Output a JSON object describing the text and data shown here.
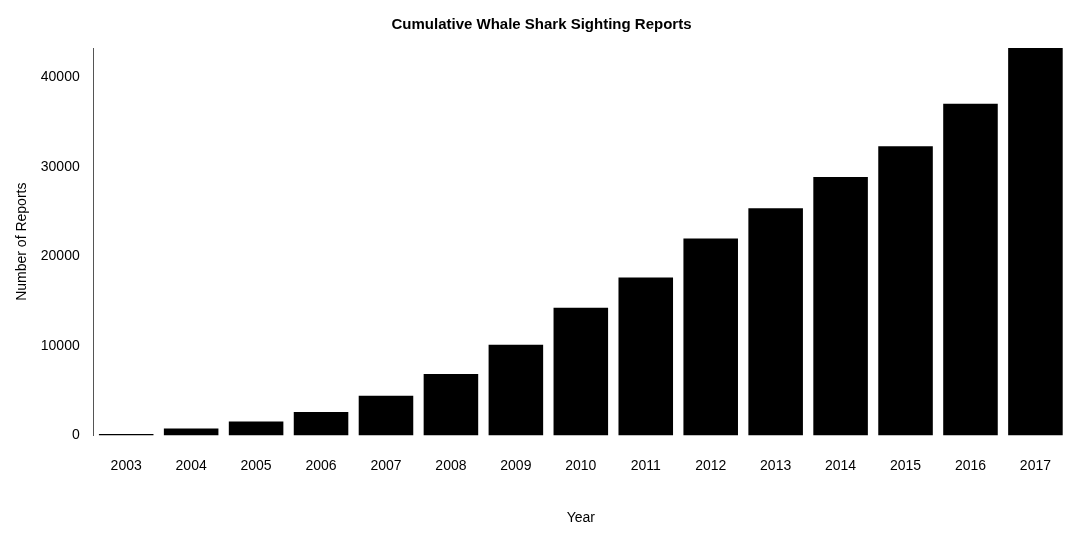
{
  "chart_data": {
    "type": "bar",
    "title": "Cumulative Whale Shark Sighting Reports",
    "xlabel": "Year",
    "ylabel": "Number of Reports",
    "categories": [
      "2003",
      "2004",
      "2005",
      "2006",
      "2007",
      "2008",
      "2009",
      "2010",
      "2011",
      "2012",
      "2013",
      "2014",
      "2015",
      "2016",
      "2017"
    ],
    "values": [
      150,
      760,
      1560,
      2620,
      4430,
      6870,
      10130,
      14280,
      17660,
      22020,
      25390,
      28880,
      32320,
      37060,
      43300
    ],
    "color": "#000000",
    "ylim": [
      0,
      43300
    ],
    "yticks": [
      0,
      10000,
      20000,
      30000,
      40000
    ],
    "grid": false,
    "legend": false
  }
}
